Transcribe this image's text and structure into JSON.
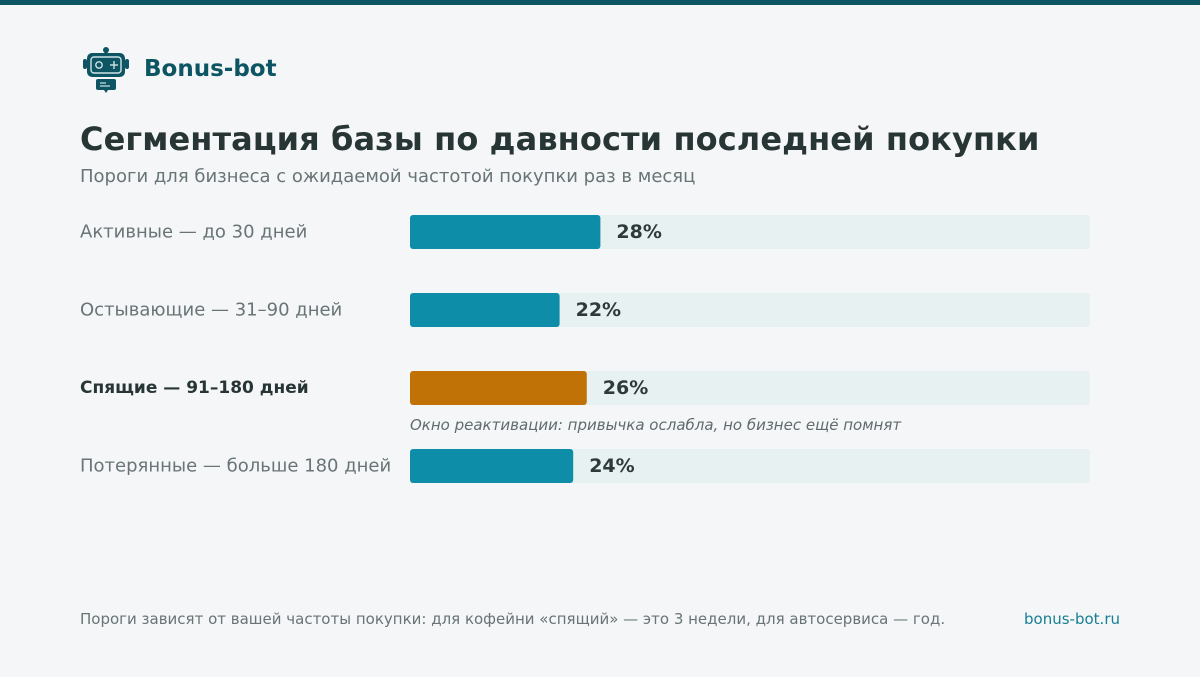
{
  "brand": {
    "name": "Bonus-bot",
    "logo_icon": "robot-icon"
  },
  "header": {
    "title": "Сегментация базы по давности последней покупки",
    "subtitle": "Пороги для бизнеса с ожидаемой частотой покупки раз в месяц"
  },
  "footer": {
    "note": "Пороги зависят от вашей частоты покупки: для кофейни «спящий» — это 3 недели, для автосервиса — год.",
    "link": "bonus-bot.ru"
  },
  "colors": {
    "bar": "#0e8da8",
    "highlight": "#c17207",
    "track": "#e8f1f2",
    "value_text": "#2e3a3a",
    "label_text": "#687476",
    "label_highlight": "#283535",
    "note_text": "#5f6b6d"
  },
  "chart_data": {
    "type": "bar",
    "orientation": "horizontal",
    "categories": [
      "Активные — до 30 дней",
      "Остывающие — 31–90 дней",
      "Спящие — 91–180 дней",
      "Потерянные — больше 180 дней"
    ],
    "values": [
      28,
      22,
      26,
      24
    ],
    "value_labels": [
      "28%",
      "22%",
      "26%",
      "24%"
    ],
    "unit": "%",
    "xlim": [
      0,
      100
    ],
    "highlight_index": 2,
    "annotations": [
      {
        "category_index": 2,
        "text": "Окно реактивации: привычка ослабла, но бизнес ещё помнят"
      }
    ],
    "grid": false,
    "legend": "none"
  }
}
